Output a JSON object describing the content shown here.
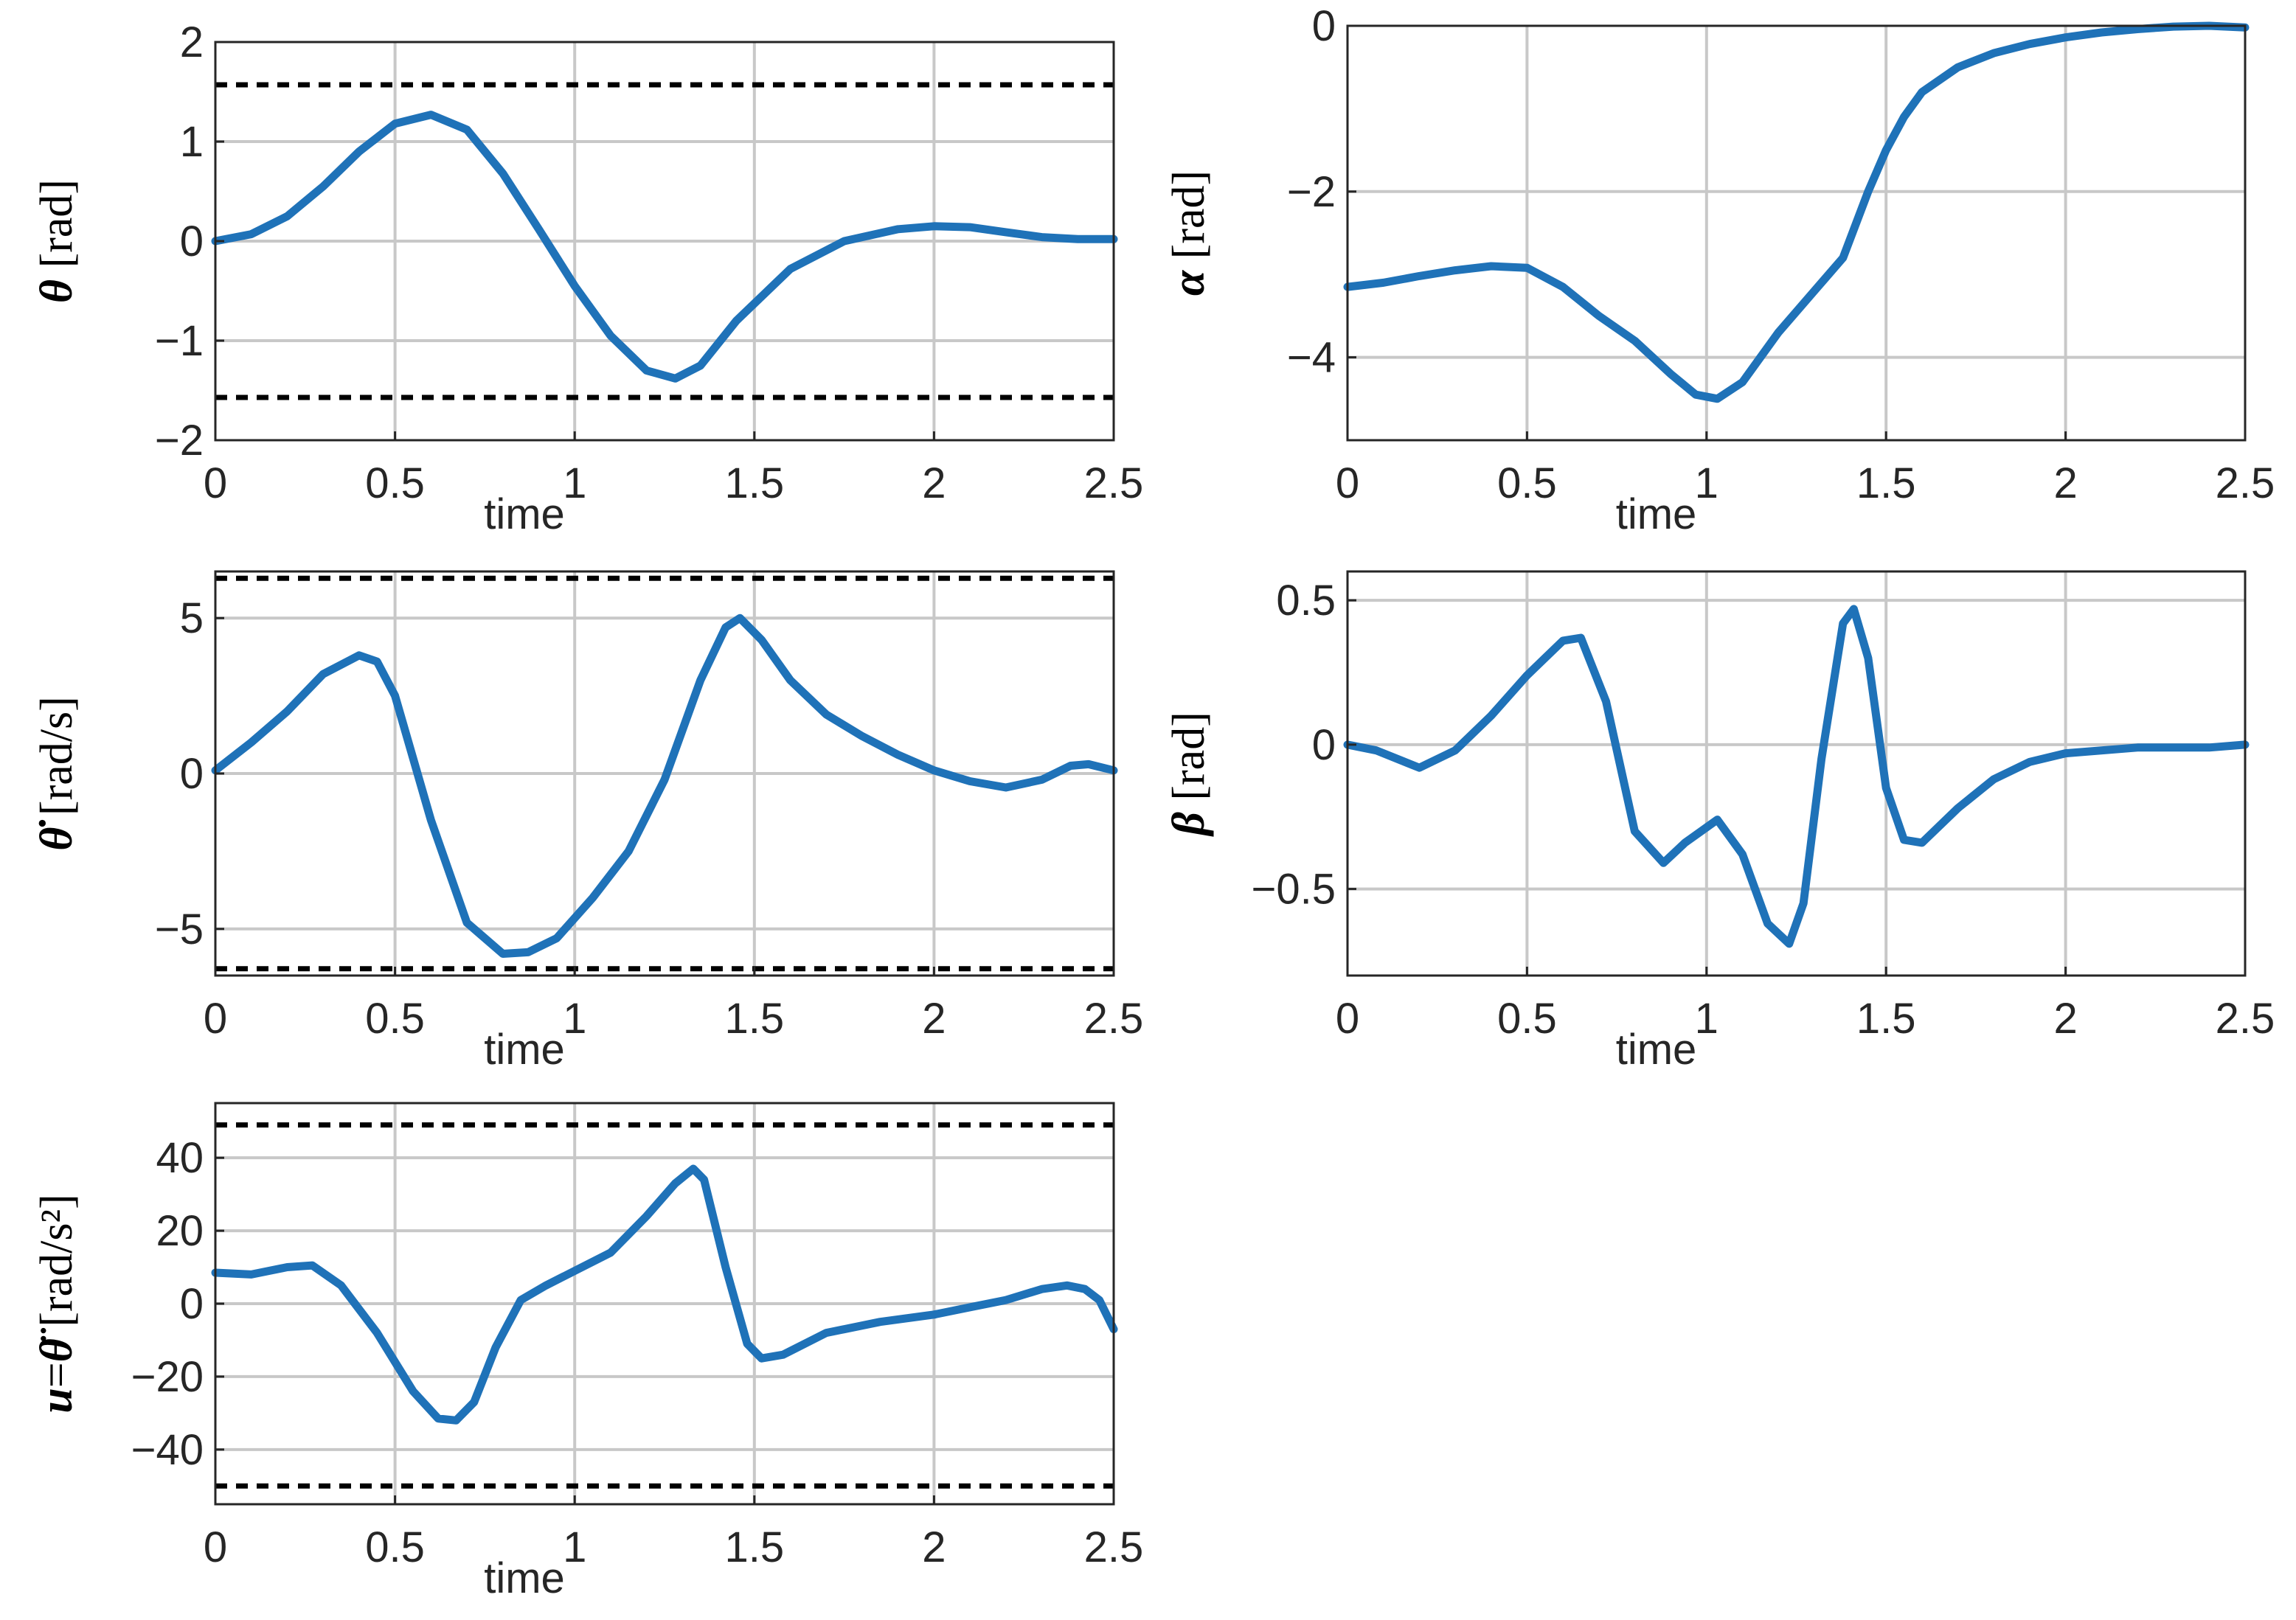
{
  "colors": {
    "series": "#1f72b8",
    "limit": "#000000",
    "grid": "#c8c8c8",
    "axis": "#262626"
  },
  "chart_data": [
    {
      "id": "theta",
      "type": "line",
      "ylabel": {
        "symbol": "θ",
        "unit": "[rad]"
      },
      "xlabel": "time",
      "xlim": [
        0,
        2.5
      ],
      "ylim": [
        -2,
        2
      ],
      "xticks": [
        0,
        0.5,
        1,
        1.5,
        2,
        2.5
      ],
      "xticklabels": [
        "0",
        "0.5",
        "1",
        "1.5",
        "2",
        "2.5"
      ],
      "yticks": [
        -2,
        -1,
        0,
        1,
        2
      ],
      "yticklabels": [
        "−2",
        "−1",
        "0",
        "1",
        "2"
      ],
      "grid": true,
      "limits": [
        1.57,
        -1.57
      ],
      "series": [
        {
          "name": "theta",
          "x": [
            0,
            0.1,
            0.2,
            0.3,
            0.4,
            0.5,
            0.6,
            0.7,
            0.8,
            0.9,
            1.0,
            1.1,
            1.2,
            1.28,
            1.35,
            1.45,
            1.6,
            1.75,
            1.9,
            2.0,
            2.1,
            2.2,
            2.3,
            2.4,
            2.5
          ],
          "y": [
            0,
            0.07,
            0.25,
            0.55,
            0.9,
            1.18,
            1.27,
            1.12,
            0.68,
            0.12,
            -0.45,
            -0.95,
            -1.3,
            -1.38,
            -1.25,
            -0.8,
            -0.28,
            0.0,
            0.12,
            0.15,
            0.14,
            0.09,
            0.04,
            0.02,
            0.02
          ]
        }
      ]
    },
    {
      "id": "alpha",
      "type": "line",
      "ylabel": {
        "symbol": "α",
        "unit": "[rad]"
      },
      "xlabel": "time",
      "xlim": [
        0,
        2.5
      ],
      "ylim": [
        -5,
        0
      ],
      "xticks": [
        0,
        0.5,
        1,
        1.5,
        2,
        2.5
      ],
      "xticklabels": [
        "0",
        "0.5",
        "1",
        "1.5",
        "2",
        "2.5"
      ],
      "yticks": [
        -4,
        -2,
        0
      ],
      "yticklabels": [
        "−4",
        "−2",
        "0"
      ],
      "grid": true,
      "limits": [],
      "series": [
        {
          "name": "alpha",
          "x": [
            0,
            0.1,
            0.2,
            0.3,
            0.4,
            0.5,
            0.6,
            0.7,
            0.8,
            0.9,
            0.97,
            1.03,
            1.1,
            1.2,
            1.3,
            1.38,
            1.45,
            1.5,
            1.55,
            1.6,
            1.7,
            1.8,
            1.9,
            2.0,
            2.1,
            2.2,
            2.3,
            2.4,
            2.5
          ],
          "y": [
            -3.15,
            -3.1,
            -3.02,
            -2.95,
            -2.9,
            -2.92,
            -3.15,
            -3.5,
            -3.8,
            -4.2,
            -4.45,
            -4.5,
            -4.3,
            -3.7,
            -3.2,
            -2.8,
            -2.0,
            -1.5,
            -1.1,
            -0.8,
            -0.5,
            -0.33,
            -0.22,
            -0.14,
            -0.08,
            -0.04,
            -0.01,
            0.0,
            -0.02
          ]
        }
      ]
    },
    {
      "id": "thetadot",
      "type": "line",
      "ylabel": {
        "symbol": "θ̇",
        "unit": "[rad/s]"
      },
      "xlabel": "time",
      "xlim": [
        0,
        2.5
      ],
      "ylim": [
        -6.5,
        6.5
      ],
      "xticks": [
        0,
        0.5,
        1,
        1.5,
        2,
        2.5
      ],
      "xticklabels": [
        "0",
        "0.5",
        "1",
        "1.5",
        "2",
        "2.5"
      ],
      "yticks": [
        -5,
        0,
        5
      ],
      "yticklabels": [
        "−5",
        "0",
        "5"
      ],
      "grid": true,
      "limits": [
        6.28,
        -6.28
      ],
      "series": [
        {
          "name": "thetadot",
          "x": [
            0,
            0.1,
            0.2,
            0.3,
            0.4,
            0.45,
            0.5,
            0.6,
            0.7,
            0.8,
            0.87,
            0.95,
            1.05,
            1.15,
            1.25,
            1.35,
            1.42,
            1.46,
            1.52,
            1.6,
            1.7,
            1.8,
            1.9,
            2.0,
            2.1,
            2.2,
            2.3,
            2.38,
            2.43,
            2.5
          ],
          "y": [
            0.1,
            1.0,
            2.0,
            3.2,
            3.8,
            3.6,
            2.5,
            -1.5,
            -4.8,
            -5.8,
            -5.75,
            -5.3,
            -4.0,
            -2.5,
            -0.2,
            3.0,
            4.7,
            5.0,
            4.3,
            3.0,
            1.9,
            1.2,
            0.6,
            0.1,
            -0.25,
            -0.45,
            -0.2,
            0.25,
            0.3,
            0.1
          ]
        }
      ]
    },
    {
      "id": "beta",
      "type": "line",
      "ylabel": {
        "symbol": "β",
        "unit": "[rad]"
      },
      "xlabel": "time",
      "xlim": [
        0,
        2.5
      ],
      "ylim": [
        -0.8,
        0.6
      ],
      "xticks": [
        0,
        0.5,
        1,
        1.5,
        2,
        2.5
      ],
      "xticklabels": [
        "0",
        "0.5",
        "1",
        "1.5",
        "2",
        "2.5"
      ],
      "yticks": [
        -0.5,
        0,
        0.5
      ],
      "yticklabels": [
        "−0.5",
        "0",
        "0.5"
      ],
      "grid": true,
      "limits": [],
      "series": [
        {
          "name": "beta",
          "x": [
            0,
            0.08,
            0.2,
            0.3,
            0.4,
            0.5,
            0.6,
            0.65,
            0.72,
            0.8,
            0.88,
            0.94,
            1.03,
            1.1,
            1.17,
            1.23,
            1.27,
            1.32,
            1.38,
            1.41,
            1.45,
            1.5,
            1.55,
            1.6,
            1.7,
            1.8,
            1.9,
            2.0,
            2.2,
            2.4,
            2.5
          ],
          "y": [
            0,
            -0.02,
            -0.08,
            -0.02,
            0.1,
            0.24,
            0.36,
            0.37,
            0.15,
            -0.3,
            -0.41,
            -0.34,
            -0.26,
            -0.38,
            -0.62,
            -0.69,
            -0.55,
            -0.05,
            0.42,
            0.47,
            0.3,
            -0.15,
            -0.33,
            -0.34,
            -0.22,
            -0.12,
            -0.06,
            -0.03,
            -0.01,
            -0.01,
            0.0
          ]
        }
      ]
    },
    {
      "id": "u",
      "type": "line",
      "ylabel": {
        "symbol": "u",
        "eq": "=",
        "symbol2": "θ̈",
        "unit": "[rad/s²]"
      },
      "xlabel": "time",
      "xlim": [
        0,
        2.5
      ],
      "ylim": [
        -55,
        55
      ],
      "xticks": [
        0,
        0.5,
        1,
        1.5,
        2,
        2.5
      ],
      "xticklabels": [
        "0",
        "0.5",
        "1",
        "1.5",
        "2",
        "2.5"
      ],
      "yticks": [
        -40,
        -20,
        0,
        20,
        40
      ],
      "yticklabels": [
        "−40",
        "−20",
        "0",
        "20",
        "40"
      ],
      "grid": true,
      "limits": [
        49,
        -50
      ],
      "series": [
        {
          "name": "u",
          "x": [
            0,
            0.1,
            0.2,
            0.27,
            0.35,
            0.45,
            0.55,
            0.62,
            0.67,
            0.72,
            0.78,
            0.85,
            0.92,
            1.0,
            1.1,
            1.2,
            1.28,
            1.33,
            1.36,
            1.42,
            1.48,
            1.52,
            1.58,
            1.7,
            1.85,
            2.0,
            2.1,
            2.2,
            2.3,
            2.37,
            2.42,
            2.46,
            2.5
          ],
          "y": [
            8.5,
            8.0,
            10.0,
            10.5,
            5.0,
            -8.0,
            -24.0,
            -31.5,
            -32.0,
            -27.0,
            -12.0,
            1.0,
            5.0,
            9.0,
            14.0,
            24.0,
            33.0,
            37.0,
            34.0,
            10.0,
            -11.0,
            -15.0,
            -14.0,
            -8.0,
            -5.0,
            -3.0,
            -1.0,
            1.0,
            4.0,
            5.0,
            4.0,
            1.0,
            -7.0
          ]
        }
      ]
    }
  ]
}
